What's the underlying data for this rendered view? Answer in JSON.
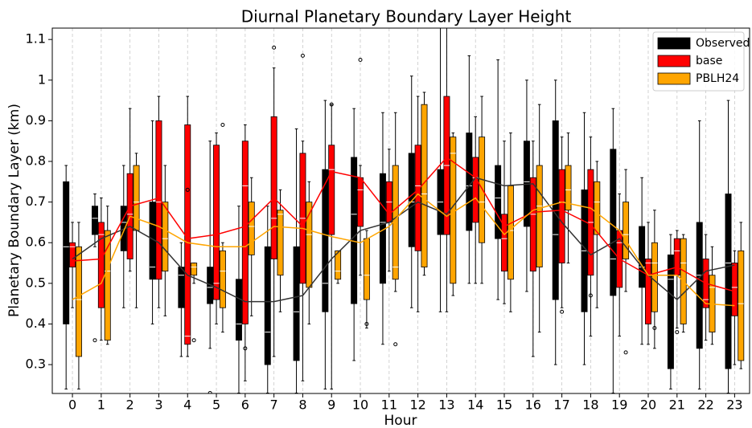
{
  "chart_data": {
    "type": "box",
    "title": "Diurnal Planetary Boundary Layer Height",
    "x_label": "Hour",
    "y_label": "Planetary Boundary Layer (km)",
    "categories": [
      "0",
      "1",
      "2",
      "3",
      "4",
      "5",
      "6",
      "7",
      "8",
      "9",
      "10",
      "11",
      "12",
      "13",
      "14",
      "15",
      "16",
      "17",
      "18",
      "19",
      "20",
      "21",
      "22",
      "23"
    ],
    "ylim": [
      0.229,
      1.128
    ],
    "yticks": [
      0.3,
      0.4,
      0.5,
      0.6,
      0.7,
      0.8,
      0.9,
      1.0,
      1.1
    ],
    "grid": "x",
    "legend": "upper right",
    "series": [
      {
        "name": "Observed",
        "color": "#000000",
        "whislo": [
          0.24,
          0.59,
          0.44,
          0.4,
          0.32,
          0.34,
          0.23,
          0.23,
          0.23,
          0.24,
          0.31,
          0.35,
          0.44,
          0.43,
          0.5,
          0.46,
          0.48,
          0.3,
          0.3,
          0.23,
          0.35,
          0.24,
          0.24,
          0.23
        ],
        "q1": [
          0.4,
          0.62,
          0.58,
          0.51,
          0.44,
          0.45,
          0.36,
          0.3,
          0.31,
          0.43,
          0.45,
          0.5,
          0.59,
          0.62,
          0.63,
          0.61,
          0.64,
          0.46,
          0.43,
          0.47,
          0.49,
          0.29,
          0.34,
          0.29
        ],
        "med": [
          0.59,
          0.66,
          0.65,
          0.54,
          0.52,
          0.49,
          0.4,
          0.38,
          0.43,
          0.5,
          0.67,
          0.65,
          0.7,
          0.7,
          0.74,
          0.71,
          0.75,
          0.62,
          0.58,
          0.56,
          0.54,
          0.51,
          0.52,
          0.55
        ],
        "q3": [
          0.75,
          0.69,
          0.69,
          0.7,
          0.54,
          0.54,
          0.51,
          0.59,
          0.59,
          0.78,
          0.81,
          0.77,
          0.82,
          0.78,
          0.87,
          0.79,
          0.85,
          0.9,
          0.73,
          0.83,
          0.64,
          0.57,
          0.65,
          0.72
        ],
        "whishi": [
          0.79,
          0.72,
          0.79,
          0.9,
          0.6,
          0.85,
          0.69,
          0.69,
          0.88,
          0.95,
          0.93,
          0.92,
          1.01,
          1.13,
          1.06,
          1.05,
          1.0,
          1.0,
          0.92,
          0.93,
          0.76,
          0.62,
          0.9,
          0.95
        ],
        "mean": [
          0.56,
          0.61,
          0.64,
          0.6,
          0.52,
          0.49,
          0.455,
          0.455,
          0.47,
          0.56,
          0.63,
          0.65,
          0.7,
          0.67,
          0.76,
          0.74,
          0.745,
          0.65,
          0.57,
          0.61,
          0.52,
          0.46,
          0.53,
          0.545
        ],
        "fliers_x": [
          0,
          1,
          5
        ],
        "fliers_y": [
          0.41,
          0.36,
          0.23
        ]
      },
      {
        "name": "base",
        "color": "#ff0000",
        "whislo": [
          0.44,
          0.36,
          0.53,
          0.44,
          0.32,
          0.4,
          0.26,
          0.32,
          0.26,
          0.24,
          0.52,
          0.53,
          0.43,
          0.43,
          0.5,
          0.45,
          0.32,
          0.44,
          0.37,
          0.37,
          0.35,
          0.39,
          0.36,
          0.3
        ],
        "q1": [
          0.54,
          0.44,
          0.56,
          0.51,
          0.35,
          0.46,
          0.4,
          0.56,
          0.5,
          0.62,
          0.64,
          0.65,
          0.58,
          0.62,
          0.65,
          0.53,
          0.53,
          0.55,
          0.52,
          0.49,
          0.4,
          0.52,
          0.44,
          0.42
        ],
        "med": [
          0.59,
          0.62,
          0.67,
          0.7,
          0.37,
          0.5,
          0.74,
          0.66,
          0.66,
          0.78,
          0.73,
          0.7,
          0.74,
          0.79,
          0.76,
          0.61,
          0.67,
          0.7,
          0.65,
          0.6,
          0.55,
          0.58,
          0.46,
          0.49
        ],
        "q3": [
          0.6,
          0.65,
          0.77,
          0.9,
          0.89,
          0.84,
          0.85,
          0.91,
          0.82,
          0.84,
          0.76,
          0.75,
          0.84,
          0.96,
          0.81,
          0.67,
          0.76,
          0.78,
          0.78,
          0.63,
          0.56,
          0.61,
          0.56,
          0.55
        ],
        "whishi": [
          0.65,
          0.71,
          0.93,
          0.96,
          0.96,
          0.87,
          0.89,
          1.03,
          0.85,
          0.94,
          0.79,
          0.83,
          0.96,
          1.13,
          0.91,
          0.85,
          0.85,
          0.86,
          0.86,
          0.72,
          0.65,
          0.63,
          0.62,
          0.58
        ],
        "mean": [
          0.555,
          0.56,
          0.69,
          0.71,
          0.61,
          0.62,
          0.64,
          0.71,
          0.64,
          0.775,
          0.76,
          0.67,
          0.73,
          0.81,
          0.76,
          0.64,
          0.675,
          0.68,
          0.645,
          0.56,
          0.52,
          0.54,
          0.5,
          0.48
        ],
        "fliers_x": [
          4,
          6,
          7,
          8,
          9,
          10,
          17,
          18,
          21
        ],
        "fliers_y": [
          0.73,
          0.34,
          1.08,
          1.06,
          0.94,
          1.05,
          0.43,
          0.47,
          0.38
        ]
      },
      {
        "name": "PBLH24",
        "color": "#ffa500",
        "whislo": [
          0.24,
          0.35,
          0.44,
          0.42,
          0.5,
          0.38,
          0.42,
          0.43,
          0.4,
          0.5,
          0.39,
          0.48,
          0.52,
          0.47,
          0.5,
          0.43,
          0.38,
          0.55,
          0.44,
          0.48,
          0.34,
          0.38,
          0.35,
          0.29
        ],
        "q1": [
          0.32,
          0.36,
          0.63,
          0.53,
          0.52,
          0.44,
          0.57,
          0.52,
          0.49,
          0.51,
          0.46,
          0.51,
          0.54,
          0.5,
          0.6,
          0.51,
          0.54,
          0.68,
          0.62,
          0.56,
          0.43,
          0.4,
          0.38,
          0.31
        ],
        "med": [
          0.46,
          0.53,
          0.7,
          0.61,
          0.54,
          0.53,
          0.64,
          0.67,
          0.62,
          0.53,
          0.52,
          0.54,
          0.72,
          0.82,
          0.7,
          0.63,
          0.69,
          0.73,
          0.7,
          0.62,
          0.55,
          0.55,
          0.49,
          0.45
        ],
        "q3": [
          0.59,
          0.63,
          0.79,
          0.7,
          0.55,
          0.58,
          0.7,
          0.68,
          0.7,
          0.58,
          0.61,
          0.79,
          0.94,
          0.86,
          0.86,
          0.74,
          0.79,
          0.79,
          0.75,
          0.7,
          0.6,
          0.61,
          0.52,
          0.58
        ],
        "whishi": [
          0.65,
          0.69,
          0.82,
          0.79,
          0.55,
          0.6,
          0.76,
          0.73,
          0.75,
          0.58,
          0.63,
          0.92,
          0.97,
          0.87,
          0.96,
          0.87,
          0.94,
          0.87,
          0.8,
          0.78,
          0.68,
          0.62,
          0.59,
          0.65
        ],
        "mean": [
          0.46,
          0.5,
          0.665,
          0.64,
          0.6,
          0.59,
          0.59,
          0.64,
          0.635,
          0.615,
          0.6,
          0.64,
          0.72,
          0.665,
          0.71,
          0.62,
          0.68,
          0.7,
          0.685,
          0.63,
          0.52,
          0.52,
          0.45,
          0.445
        ],
        "fliers_x": [
          4,
          5,
          10,
          11,
          19,
          20
        ],
        "fliers_y": [
          0.36,
          0.89,
          0.4,
          0.35,
          0.33,
          0.39
        ]
      }
    ]
  }
}
